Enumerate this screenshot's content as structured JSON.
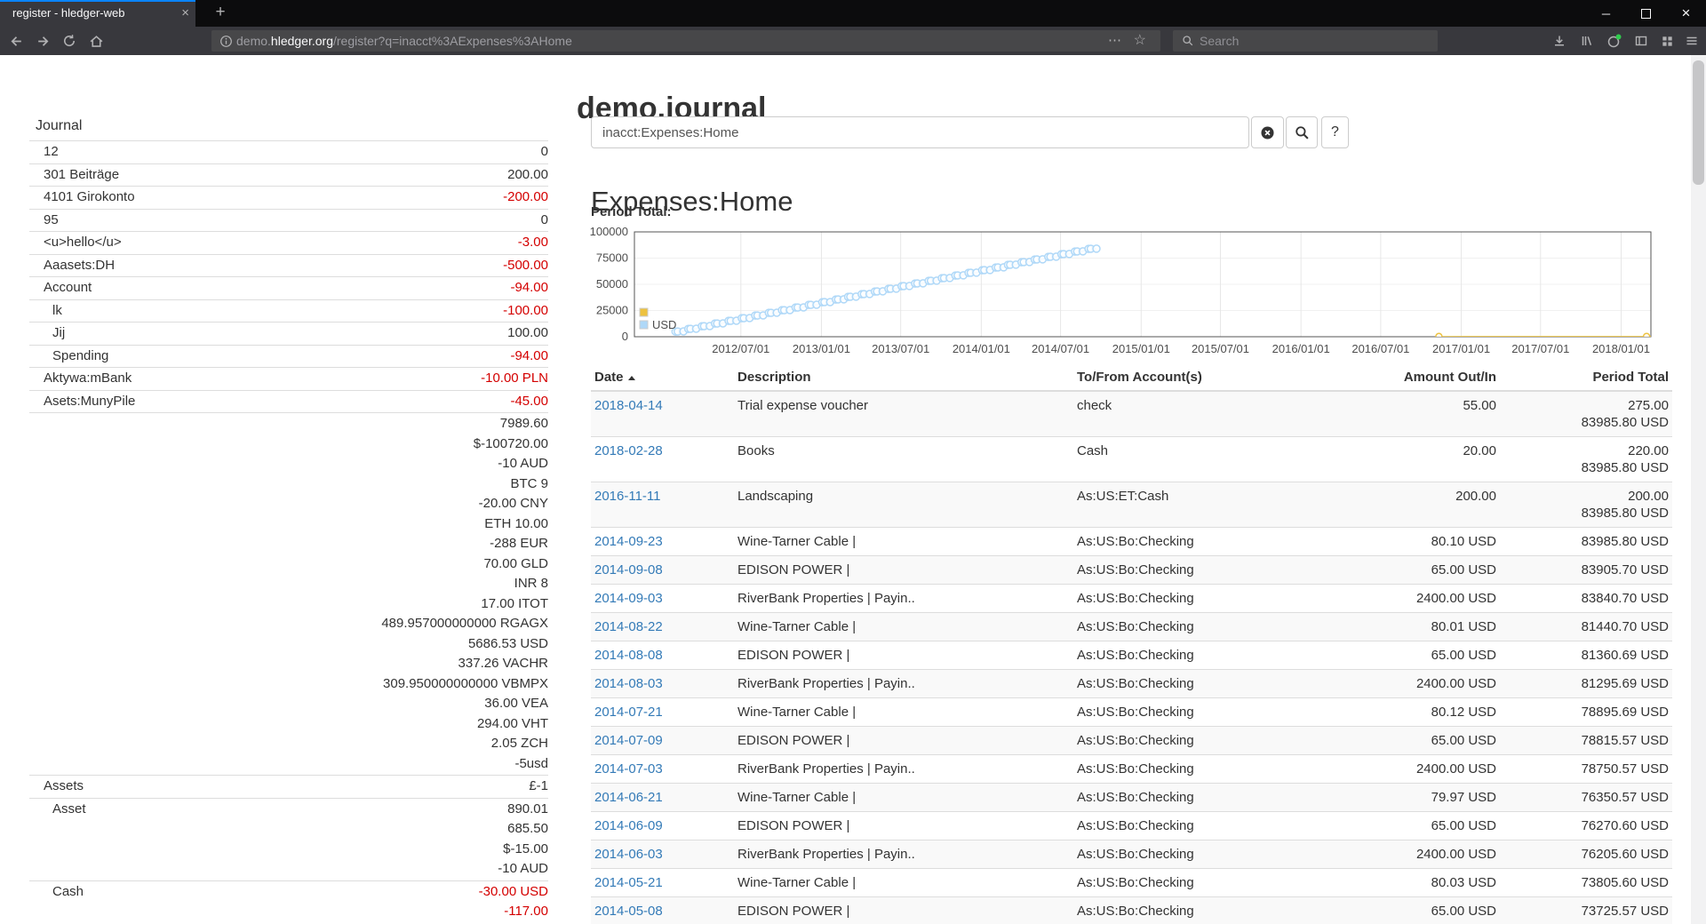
{
  "colors": {
    "accent_blue": "#337ab7",
    "negative_red": "#d40000",
    "firefox_accent": "#0a84ff",
    "series_usd": "#afd8f8",
    "series_other": "#edc240"
  },
  "browser": {
    "tab_title": "register - hledger-web",
    "url": {
      "prefix": "demo.",
      "domain": "hledger.org",
      "path": "/register?q=inacct%3AExpenses%3AHome"
    },
    "search_placeholder": "Search",
    "icons": {
      "new_tab": "+",
      "tab_close": "×",
      "overflow_dots": "⋯",
      "bookmark_star": "☆",
      "window_minimize": "─",
      "window_close": "×"
    }
  },
  "main": {
    "title": "demo.journal",
    "search_query": "inacct:Expenses:Home",
    "help_label": "?",
    "account_heading": "Expenses:Home",
    "period_total_label": "Period Total:"
  },
  "sidebar": {
    "journal_label": "Journal",
    "accounts": [
      {
        "name": "12",
        "depth": 1,
        "negative": false,
        "amounts": [
          "0"
        ]
      },
      {
        "name": "301 Beiträge",
        "depth": 1,
        "negative": false,
        "amounts": [
          "200.00"
        ]
      },
      {
        "name": "4101 Girokonto",
        "depth": 1,
        "negative": true,
        "amounts": [
          "-200.00"
        ]
      },
      {
        "name": "95",
        "depth": 1,
        "negative": false,
        "amounts": [
          "0"
        ]
      },
      {
        "name": "<u>hello</u>",
        "depth": 1,
        "negative": true,
        "amounts": [
          "-3.00"
        ]
      },
      {
        "name": "Aaasets:DH",
        "depth": 1,
        "negative": true,
        "amounts": [
          "-500.00"
        ]
      },
      {
        "name": "Account",
        "depth": 1,
        "negative": true,
        "amounts": [
          "-94.00"
        ]
      },
      {
        "name": "lk",
        "depth": 2,
        "negative": true,
        "amounts": [
          "-100.00"
        ]
      },
      {
        "name": "Jij",
        "depth": 2,
        "negative": false,
        "amounts": [
          "100.00"
        ]
      },
      {
        "name": "Spending",
        "depth": 2,
        "negative": true,
        "amounts": [
          "-94.00"
        ]
      },
      {
        "name": "Aktywa:mBank",
        "depth": 1,
        "negative": true,
        "amounts": [
          "-10.00 PLN"
        ]
      },
      {
        "name": "Asets:MunyPile",
        "depth": 1,
        "negative": true,
        "amounts": [
          "-45.00"
        ]
      },
      {
        "name": "",
        "depth": 1,
        "negative": false,
        "amounts": [
          "7989.60",
          "$-100720.00",
          "-10 AUD",
          "BTC 9",
          "-20.00 CNY",
          "ETH 10.00",
          "-288 EUR",
          "70.00 GLD",
          "INR 8",
          "17.00 ITOT",
          "489.957000000000 RGAGX",
          "5686.53 USD",
          "337.26 VACHR",
          "309.950000000000 VBMPX",
          "36.00 VEA",
          "294.00 VHT",
          "2.05 ZCH",
          "-5usd"
        ]
      },
      {
        "name": "Assets",
        "depth": 1,
        "negative": false,
        "amounts": [
          "£-1"
        ]
      },
      {
        "name": "Asset",
        "depth": 2,
        "negative": false,
        "amounts": [
          "890.01",
          "685.50",
          "$-15.00",
          "-10 AUD"
        ]
      },
      {
        "name": "Cash",
        "depth": 2,
        "negative": true,
        "amounts": [
          "-30.00 USD",
          "-117.00"
        ]
      }
    ]
  },
  "chart_data": {
    "type": "line",
    "title": "Period Total:",
    "x_axis": {
      "min": "2011-11-01",
      "max": "2018-03-10",
      "ticks": [
        "2012/07/01",
        "2013/01/01",
        "2013/07/01",
        "2014/01/01",
        "2014/07/01",
        "2015/01/01",
        "2015/07/01",
        "2016/01/01",
        "2016/07/01",
        "2017/01/01",
        "2017/07/01",
        "2018/01/01"
      ]
    },
    "y_axis": {
      "min": 0,
      "max": 100000,
      "ticks": [
        0,
        25000,
        50000,
        75000,
        100000
      ]
    },
    "legend_position": "bottom-left",
    "grid": true,
    "series": [
      {
        "name": "USD",
        "color": "#afd8f8",
        "marker_radius": 4,
        "generator": {
          "comment": "cumulative USD period total of recurring monthly transactions (RiverBank 2400 on ~3rd, EDISON 65 on ~8th, Wine-Tarner ~80 on ~21st)",
          "start_month": "2012-02",
          "end_date": "2014-09-23",
          "start_total": 4950.8,
          "end_total": 83985.8,
          "monthly_transactions": [
            [
              3,
              2400
            ],
            [
              8,
              65
            ],
            [
              21,
              80
            ]
          ]
        }
      },
      {
        "name": "",
        "color": "#edc240",
        "marker_radius": 3.5,
        "points": [
          [
            "2016-11-11",
            200
          ],
          [
            "2018-02-28",
            220
          ],
          [
            "2018-04-14",
            275
          ]
        ]
      }
    ],
    "legend": [
      {
        "swatch": "#edc240",
        "label": ""
      },
      {
        "swatch": "#afd8f8",
        "label": "USD"
      }
    ]
  },
  "register": {
    "columns": [
      "Date",
      "Description",
      "To/From Account(s)",
      "Amount Out/In",
      "Period Total"
    ],
    "rows": [
      {
        "date": "2018-04-14",
        "description": "Trial expense voucher",
        "account": "check",
        "amount": "55.00",
        "totals": [
          "275.00",
          "83985.80 USD"
        ]
      },
      {
        "date": "2018-02-28",
        "description": "Books",
        "account": "Cash",
        "amount": "20.00",
        "totals": [
          "220.00",
          "83985.80 USD"
        ]
      },
      {
        "date": "2016-11-11",
        "description": "Landscaping",
        "account": "As:US:ET:Cash",
        "amount": "200.00",
        "totals": [
          "200.00",
          "83985.80 USD"
        ]
      },
      {
        "date": "2014-09-23",
        "description": "Wine-Tarner Cable |",
        "account": "As:US:Bo:Checking",
        "amount": "80.10 USD",
        "totals": [
          "83985.80 USD"
        ]
      },
      {
        "date": "2014-09-08",
        "description": "EDISON POWER |",
        "account": "As:US:Bo:Checking",
        "amount": "65.00 USD",
        "totals": [
          "83905.70 USD"
        ]
      },
      {
        "date": "2014-09-03",
        "description": "RiverBank Properties | Payin..",
        "account": "As:US:Bo:Checking",
        "amount": "2400.00 USD",
        "totals": [
          "83840.70 USD"
        ]
      },
      {
        "date": "2014-08-22",
        "description": "Wine-Tarner Cable |",
        "account": "As:US:Bo:Checking",
        "amount": "80.01 USD",
        "totals": [
          "81440.70 USD"
        ]
      },
      {
        "date": "2014-08-08",
        "description": "EDISON POWER |",
        "account": "As:US:Bo:Checking",
        "amount": "65.00 USD",
        "totals": [
          "81360.69 USD"
        ]
      },
      {
        "date": "2014-08-03",
        "description": "RiverBank Properties | Payin..",
        "account": "As:US:Bo:Checking",
        "amount": "2400.00 USD",
        "totals": [
          "81295.69 USD"
        ]
      },
      {
        "date": "2014-07-21",
        "description": "Wine-Tarner Cable |",
        "account": "As:US:Bo:Checking",
        "amount": "80.12 USD",
        "totals": [
          "78895.69 USD"
        ]
      },
      {
        "date": "2014-07-09",
        "description": "EDISON POWER |",
        "account": "As:US:Bo:Checking",
        "amount": "65.00 USD",
        "totals": [
          "78815.57 USD"
        ]
      },
      {
        "date": "2014-07-03",
        "description": "RiverBank Properties | Payin..",
        "account": "As:US:Bo:Checking",
        "amount": "2400.00 USD",
        "totals": [
          "78750.57 USD"
        ]
      },
      {
        "date": "2014-06-21",
        "description": "Wine-Tarner Cable |",
        "account": "As:US:Bo:Checking",
        "amount": "79.97 USD",
        "totals": [
          "76350.57 USD"
        ]
      },
      {
        "date": "2014-06-09",
        "description": "EDISON POWER |",
        "account": "As:US:Bo:Checking",
        "amount": "65.00 USD",
        "totals": [
          "76270.60 USD"
        ]
      },
      {
        "date": "2014-06-03",
        "description": "RiverBank Properties | Payin..",
        "account": "As:US:Bo:Checking",
        "amount": "2400.00 USD",
        "totals": [
          "76205.60 USD"
        ]
      },
      {
        "date": "2014-05-21",
        "description": "Wine-Tarner Cable |",
        "account": "As:US:Bo:Checking",
        "amount": "80.03 USD",
        "totals": [
          "73805.60 USD"
        ]
      },
      {
        "date": "2014-05-08",
        "description": "EDISON POWER |",
        "account": "As:US:Bo:Checking",
        "amount": "65.00 USD",
        "totals": [
          "73725.57 USD"
        ]
      }
    ]
  }
}
